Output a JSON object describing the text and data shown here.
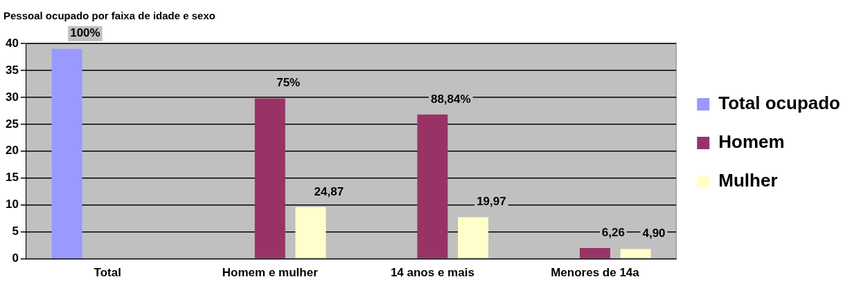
{
  "chart_data": {
    "type": "bar",
    "title": "Pessoal ocupado por faixa de idade e sexo",
    "categories": [
      "Total",
      "Homem e mulher",
      "14 anos e mais",
      "Menores de 14a"
    ],
    "series": [
      {
        "name": "Total ocupado",
        "color": "#9999ff",
        "values": [
          39,
          null,
          null,
          null
        ]
      },
      {
        "name": "Homem",
        "color": "#993366",
        "values": [
          null,
          29.8,
          26.8,
          2.0
        ]
      },
      {
        "name": "Mulher",
        "color": "#ffffcc",
        "values": [
          null,
          9.6,
          7.7,
          1.8
        ]
      }
    ],
    "ylim": [
      0,
      40
    ],
    "yticks": [
      0,
      5,
      10,
      15,
      20,
      25,
      30,
      35,
      40
    ],
    "grid": "y",
    "legend": "right",
    "annotations": [
      "100%",
      "75%",
      "24,87",
      "88,84%",
      "19,97",
      "6,26",
      "4,90"
    ]
  }
}
